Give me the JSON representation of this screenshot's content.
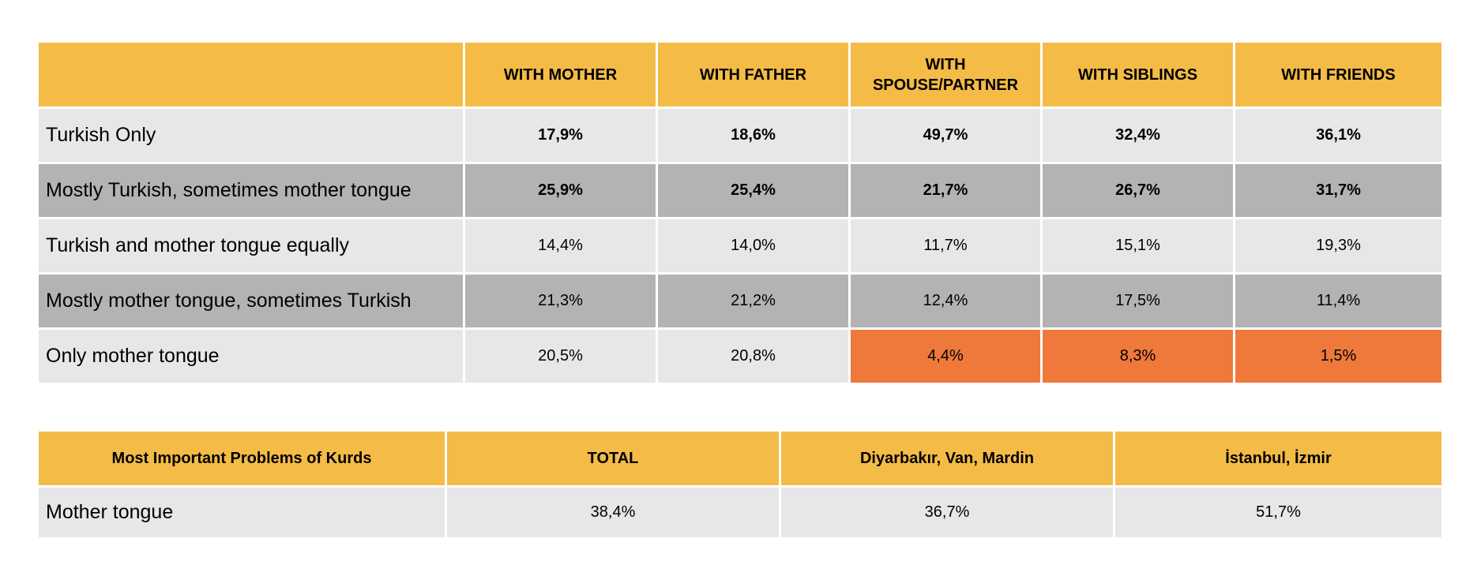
{
  "table1": {
    "headers": [
      "",
      "WITH MOTHER",
      "WITH FATHER",
      "WITH\nSPOUSE/PARTNER",
      "WITH SIBLINGS",
      "WITH FRIENDS"
    ],
    "rows": [
      {
        "label": "Turkish Only",
        "values": [
          "17,9%",
          "18,6%",
          "49,7%",
          "32,4%",
          "36,1%"
        ]
      },
      {
        "label": "Mostly Turkish, sometimes mother tongue",
        "values": [
          "25,9%",
          "25,4%",
          "21,7%",
          "26,7%",
          "31,7%"
        ]
      },
      {
        "label": "Turkish and mother tongue equally",
        "values": [
          "14,4%",
          "14,0%",
          "11,7%",
          "15,1%",
          "19,3%"
        ]
      },
      {
        "label": "Mostly mother tongue, sometimes Turkish",
        "values": [
          "21,3%",
          "21,2%",
          "12,4%",
          "17,5%",
          "11,4%"
        ]
      },
      {
        "label": "Only mother tongue",
        "values": [
          "20,5%",
          "20,8%",
          "4,4%",
          "8,3%",
          "1,5%"
        ]
      }
    ]
  },
  "table2": {
    "headers": [
      "Most Important Problems of Kurds",
      "TOTAL",
      "Diyarbakır, Van, Mardin",
      "İstanbul, İzmir"
    ],
    "rows": [
      {
        "label": "Mother tongue",
        "values": [
          "38,4%",
          "36,7%",
          "51,7%"
        ]
      }
    ]
  },
  "colors": {
    "header": "#f4bb47",
    "row_light": "#e7e7e7",
    "row_dark": "#b3b3b3",
    "highlight": "#ee793b"
  }
}
